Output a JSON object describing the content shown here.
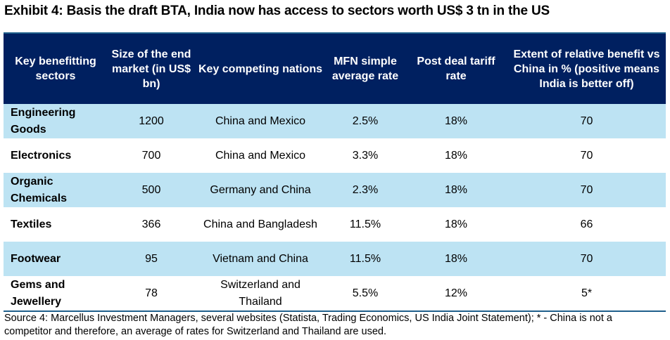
{
  "title": "Exhibit 4: Basis the draft BTA, India now has access to sectors worth US$ 3 tn in the US",
  "colors": {
    "header_bg": "#002060",
    "alt_row_bg": "#bde3f3",
    "rule": "#1f5f8b"
  },
  "table": {
    "headers": [
      "Key benefitting sectors",
      "Size of the end market (in US$ bn)",
      "Key competing nations",
      "MFN simple average rate",
      "Post deal tariff rate",
      "Extent of relative benefit vs China in % (positive means India is better off)"
    ],
    "rows": [
      [
        "Engineering Goods",
        "1200",
        "China and Mexico",
        "2.5%",
        "18%",
        "70"
      ],
      [
        "Electronics",
        "700",
        "China and Mexico",
        "3.3%",
        "18%",
        "70"
      ],
      [
        "Organic Chemicals",
        "500",
        "Germany and China",
        "2.3%",
        "18%",
        "70"
      ],
      [
        "Textiles",
        "366",
        "China and Bangladesh",
        "11.5%",
        "18%",
        "66"
      ],
      [
        "Footwear",
        "95",
        "Vietnam and China",
        "11.5%",
        "18%",
        "70"
      ],
      [
        "Gems and Jewellery",
        "78",
        "Switzerland and Thailand",
        "5.5%",
        "12%",
        "5*"
      ]
    ]
  },
  "source": "Source 4: Marcellus Investment Managers, several websites (Statista, Trading Economics, US India Joint Statement); * - China is not a competitor and therefore, an average of rates for Switzerland and Thailand are used."
}
